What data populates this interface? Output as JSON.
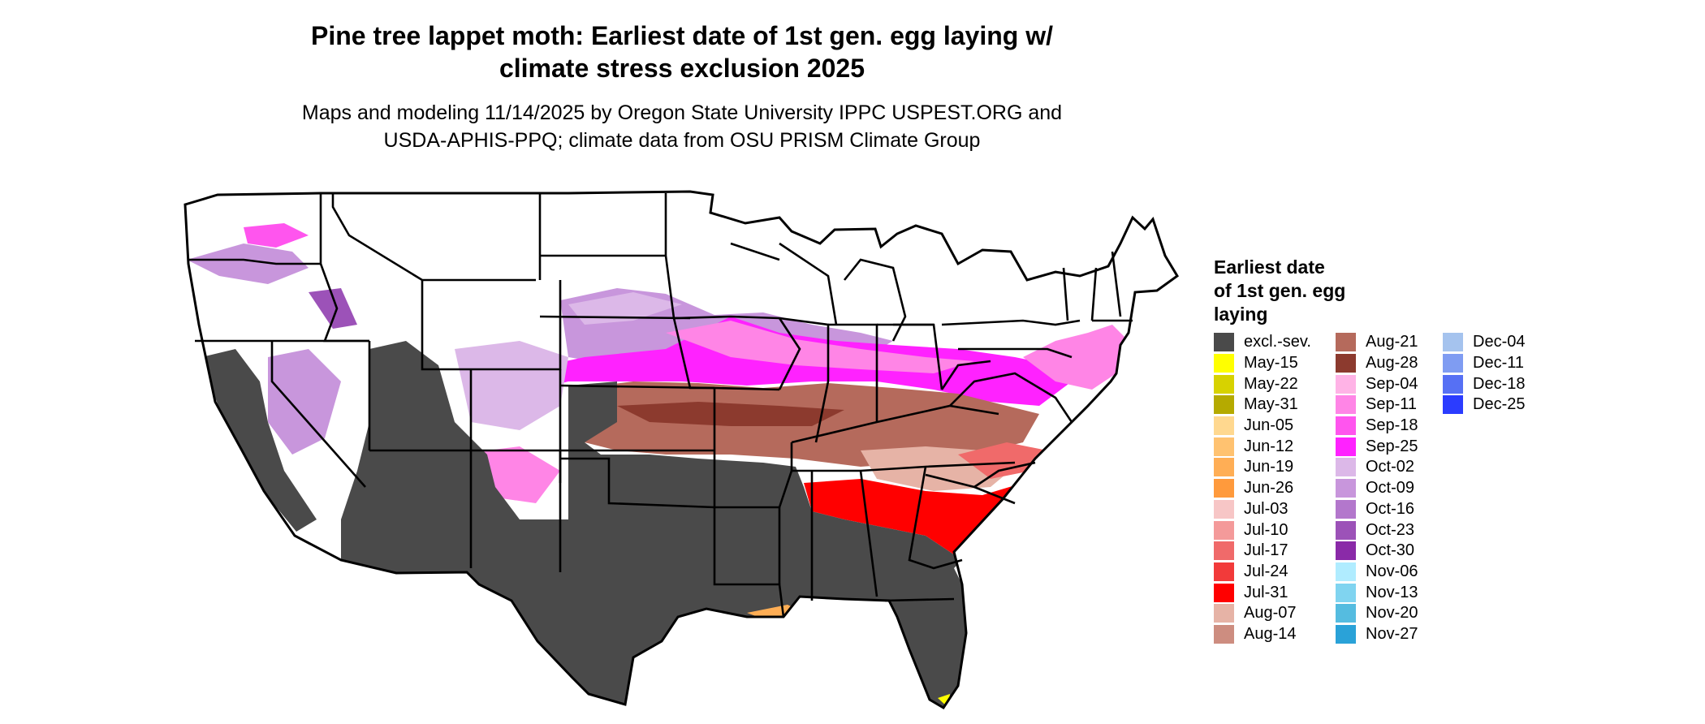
{
  "title": {
    "line1": "Pine tree lappet moth: Earliest date of 1st gen. egg laying w/",
    "line2": "climate stress exclusion 2025"
  },
  "subtitle": {
    "line1": "Maps and modeling 11/14/2025 by Oregon State University IPPC USPEST.ORG and",
    "line2": "USDA-APHIS-PPQ; climate data from OSU PRISM Climate Group"
  },
  "legend": {
    "title_lines": [
      "Earliest date",
      "of 1st gen. egg",
      "laying"
    ],
    "columns": [
      [
        {
          "label": "excl.-sev.",
          "color": "#4a4a4a"
        },
        {
          "label": "May-15",
          "color": "#ffff00"
        },
        {
          "label": "May-22",
          "color": "#d7d200"
        },
        {
          "label": "May-31",
          "color": "#b5aa00"
        },
        {
          "label": "Jun-05",
          "color": "#ffd88f"
        },
        {
          "label": "Jun-12",
          "color": "#ffc270"
        },
        {
          "label": "Jun-19",
          "color": "#ffae55"
        },
        {
          "label": "Jun-26",
          "color": "#ff9a3c"
        },
        {
          "label": "Jul-03",
          "color": "#f7c6c6"
        },
        {
          "label": "Jul-10",
          "color": "#f49a9a"
        },
        {
          "label": "Jul-17",
          "color": "#f06a6a"
        },
        {
          "label": "Jul-24",
          "color": "#f23a3a"
        },
        {
          "label": "Jul-31",
          "color": "#ff0000"
        },
        {
          "label": "Aug-07",
          "color": "#e6b3a6"
        },
        {
          "label": "Aug-14",
          "color": "#cd8d80"
        }
      ],
      [
        {
          "label": "Aug-21",
          "color": "#b56a5c"
        },
        {
          "label": "Aug-28",
          "color": "#8c3a2e"
        },
        {
          "label": "Sep-04",
          "color": "#ffb3e6"
        },
        {
          "label": "Sep-11",
          "color": "#ff85e6"
        },
        {
          "label": "Sep-18",
          "color": "#ff55ee"
        },
        {
          "label": "Sep-25",
          "color": "#ff22ff"
        },
        {
          "label": "Oct-02",
          "color": "#dcb8e8"
        },
        {
          "label": "Oct-09",
          "color": "#c896dc"
        },
        {
          "label": "Oct-16",
          "color": "#b377cc"
        },
        {
          "label": "Oct-23",
          "color": "#9c52b8"
        },
        {
          "label": "Oct-30",
          "color": "#8a2aa8"
        },
        {
          "label": "Nov-06",
          "color": "#b0ecff"
        },
        {
          "label": "Nov-13",
          "color": "#80d4f0"
        },
        {
          "label": "Nov-20",
          "color": "#55bce0"
        },
        {
          "label": "Nov-27",
          "color": "#2aa2d8"
        }
      ],
      [
        {
          "label": "Dec-04",
          "color": "#a5c3ee"
        },
        {
          "label": "Dec-11",
          "color": "#7f9cf2"
        },
        {
          "label": "Dec-18",
          "color": "#5670f4"
        },
        {
          "label": "Dec-25",
          "color": "#2b3cff"
        }
      ]
    ]
  }
}
